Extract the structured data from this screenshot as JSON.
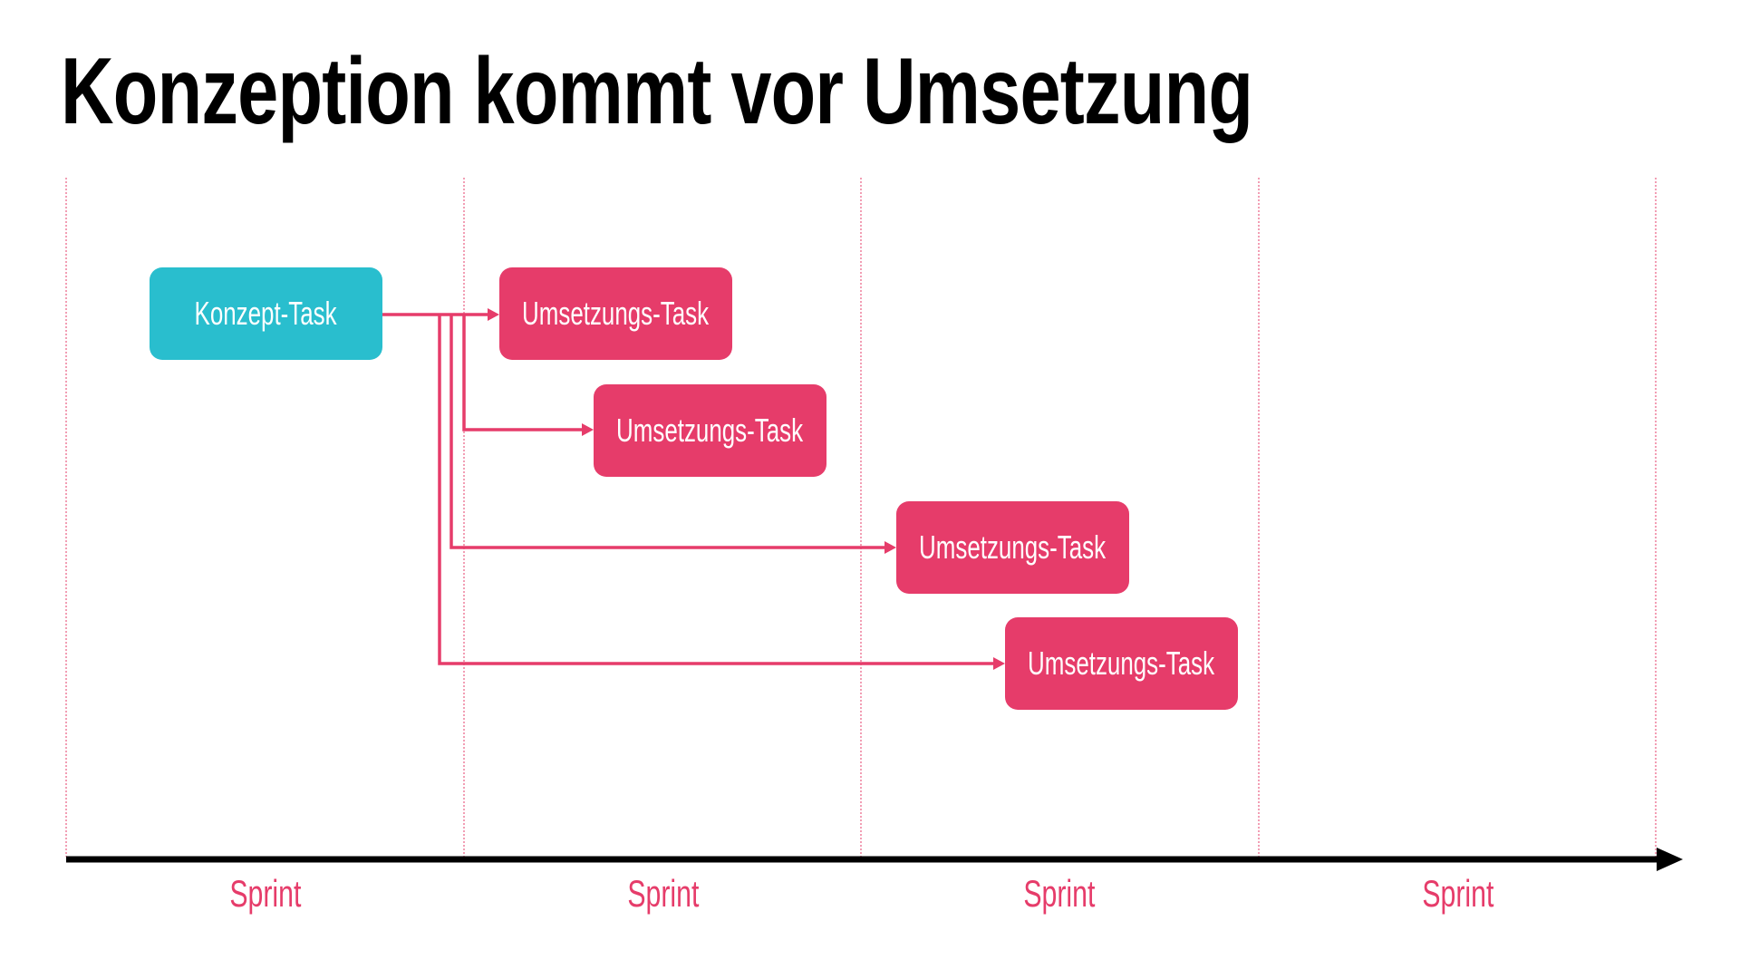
{
  "title": "Konzeption kommt vor Umsetzung",
  "colors": {
    "concept": "#29BECE",
    "implementation": "#E63C6A",
    "axis": "#000000"
  },
  "concept_task": {
    "label": "Konzept-Task"
  },
  "implementation_tasks": [
    {
      "label": "Umsetzungs-Task"
    },
    {
      "label": "Umsetzungs-Task"
    },
    {
      "label": "Umsetzungs-Task"
    },
    {
      "label": "Umsetzungs-Task"
    }
  ],
  "sprints": [
    {
      "label": "Sprint"
    },
    {
      "label": "Sprint"
    },
    {
      "label": "Sprint"
    },
    {
      "label": "Sprint"
    }
  ]
}
